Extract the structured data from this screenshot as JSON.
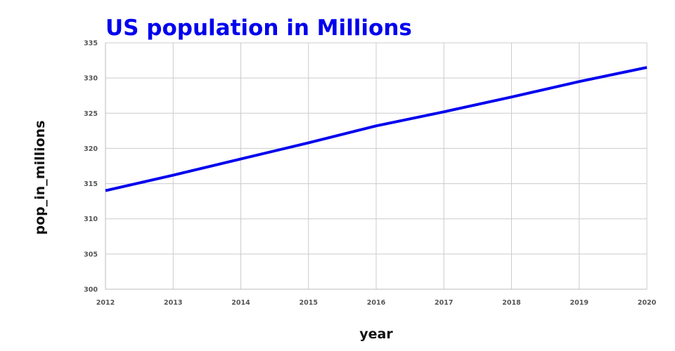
{
  "chart_data": {
    "type": "line",
    "title": "US population in Millions",
    "xlabel": "year",
    "ylabel": "pop_in_millions",
    "x": [
      2012,
      2013,
      2014,
      2015,
      2016,
      2017,
      2018,
      2019,
      2020
    ],
    "series": [
      {
        "values": [
          314.0,
          316.2,
          318.5,
          320.8,
          323.2,
          325.2,
          327.3,
          329.5,
          331.5
        ],
        "color": "#0000ee"
      }
    ],
    "xlim": [
      2012,
      2020
    ],
    "ylim": [
      300,
      335
    ],
    "y_ticks": [
      300,
      305,
      310,
      315,
      320,
      325,
      330,
      335
    ],
    "x_ticks": [
      2012,
      2013,
      2014,
      2015,
      2016,
      2017,
      2018,
      2019,
      2020
    ],
    "grid": true,
    "legend": "none",
    "title_color": "#0000ee"
  }
}
